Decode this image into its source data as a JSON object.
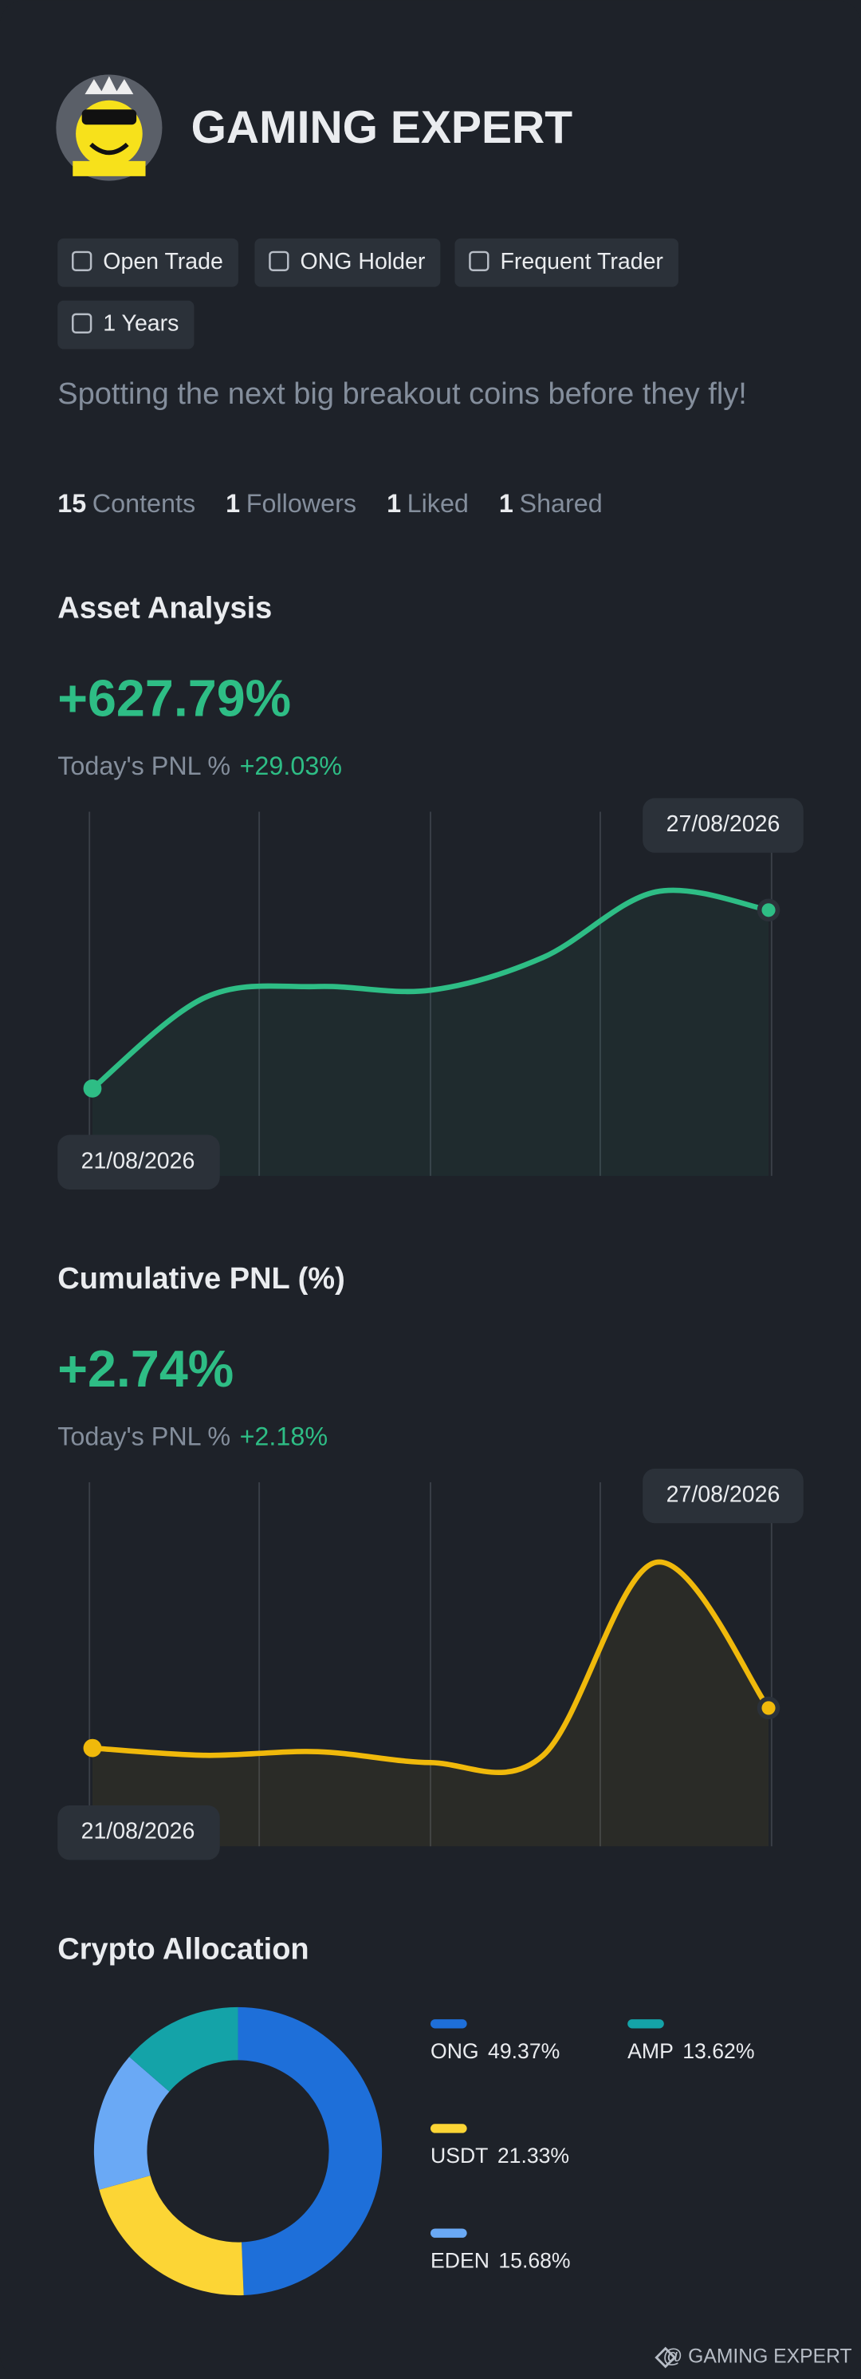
{
  "profile": {
    "name": "GAMING EXPERT",
    "badges": [
      "Open Trade",
      "ONG Holder",
      "Frequent Trader",
      "1 Years"
    ],
    "bio": "Spotting the next big breakout coins before they fly!",
    "stats": [
      {
        "count": 15,
        "label": "Contents"
      },
      {
        "count": 1,
        "label": "Followers"
      },
      {
        "count": 1,
        "label": "Liked"
      },
      {
        "count": 1,
        "label": "Shared"
      }
    ]
  },
  "chart_data": [
    {
      "type": "line",
      "title": "Asset Analysis",
      "headline": "+627.79%",
      "today_label": "Today's PNL %",
      "today_value": "+29.03%",
      "categories": [
        "21/08/2026",
        null,
        null,
        null,
        null,
        null,
        "27/08/2026"
      ],
      "series": [
        {
          "color": "#2ebd85",
          "values": [
            24,
            49,
            52,
            51,
            60,
            78,
            73
          ]
        }
      ],
      "ylim": [
        0,
        100
      ]
    },
    {
      "type": "line",
      "title": "Cumulative PNL (%)",
      "headline": "+2.74%",
      "today_label": "Today's PNL %",
      "today_value": "+2.18%",
      "categories": [
        "21/08/2026",
        null,
        null,
        null,
        null,
        null,
        "27/08/2026"
      ],
      "series": [
        {
          "color": "#f0b90b",
          "values": [
            27,
            25,
            26,
            23,
            25,
            78,
            38
          ]
        }
      ],
      "ylim": [
        0,
        100
      ]
    },
    {
      "type": "pie",
      "title": "Crypto Allocation",
      "categories": [
        "ONG",
        "USDT",
        "EDEN",
        "AMP"
      ],
      "values": [
        49.37,
        21.33,
        15.68,
        13.62
      ],
      "value_labels": [
        "49.37%",
        "21.33%",
        "15.68%",
        "13.62%"
      ],
      "colors": [
        "#1e6fd9",
        "#fcd535",
        "#6aa9f5",
        "#14a3a8"
      ]
    }
  ],
  "footer": "@ GAMING EXPERT"
}
